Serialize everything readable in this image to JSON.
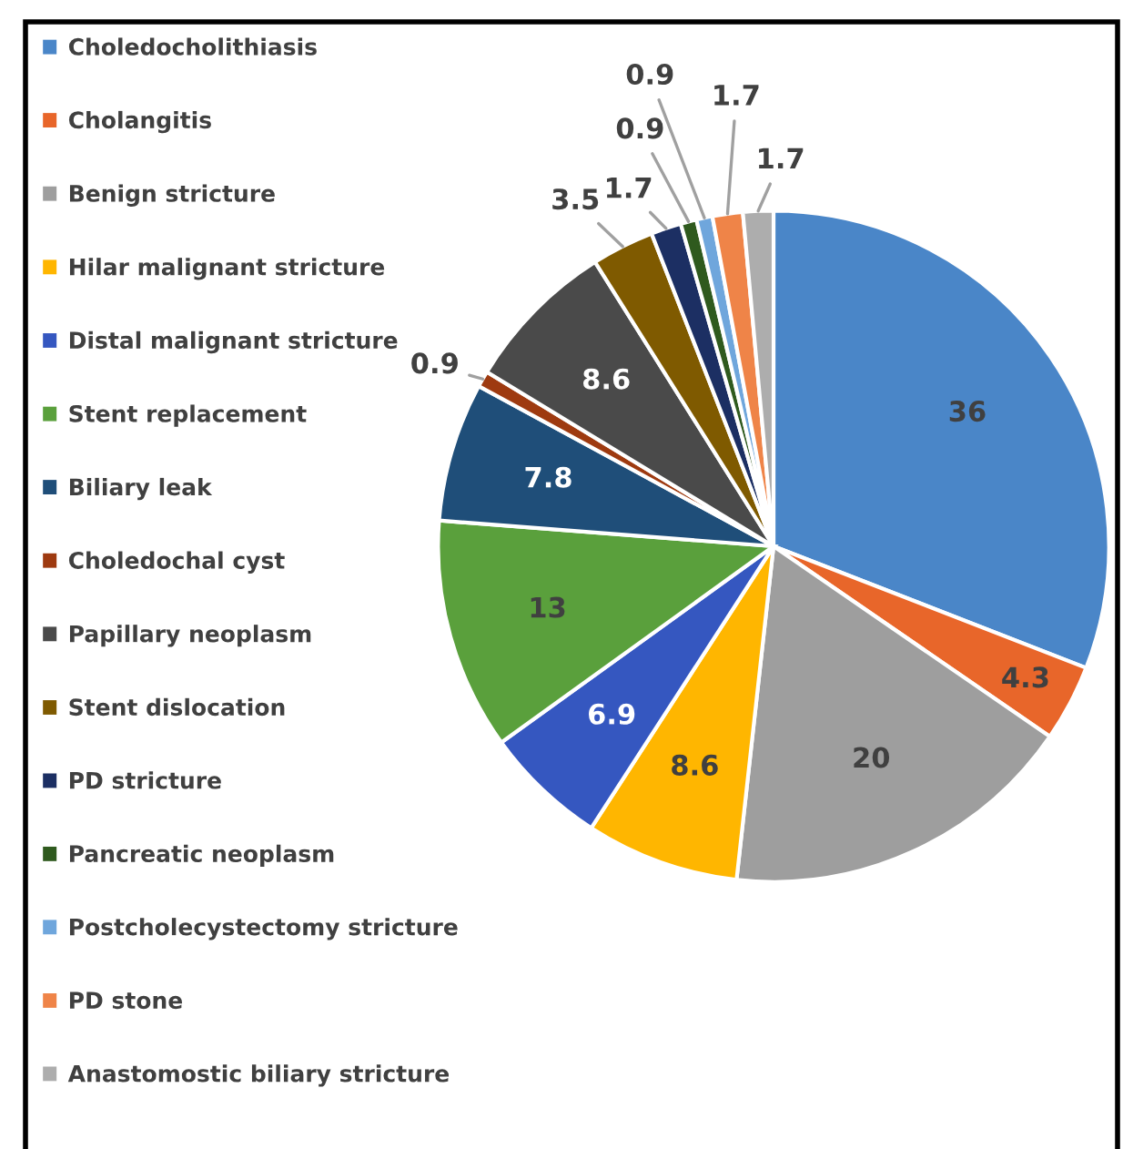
{
  "chart_data": {
    "type": "pie",
    "categories": [
      "Choledocholithiasis",
      "Cholangitis",
      "Benign stricture",
      "Hilar malignant stricture",
      "Distal malignant stricture",
      "Stent replacement",
      "Biliary leak",
      "Choledochal cyst",
      "Papillary neoplasm",
      "Stent dislocation",
      "PD stricture",
      "Pancreatic neoplasm",
      "Postcholecystectomy stricture",
      "PD stone",
      "Anastomostic biliary stricture"
    ],
    "values": [
      36,
      4.3,
      20,
      8.6,
      6.9,
      13,
      7.8,
      0.9,
      8.6,
      3.5,
      1.7,
      0.9,
      0.9,
      1.7,
      1.7
    ],
    "colors": [
      "#4a86c8",
      "#e8662a",
      "#9e9e9e",
      "#ffb600",
      "#3557c0",
      "#5aa03c",
      "#1f4e79",
      "#9e3a10",
      "#4a4a4a",
      "#7f5a00",
      "#1c2f63",
      "#2f5a1e",
      "#6fa6dc",
      "#ef8448",
      "#adadad"
    ],
    "data_labels": true,
    "legend": "left"
  }
}
